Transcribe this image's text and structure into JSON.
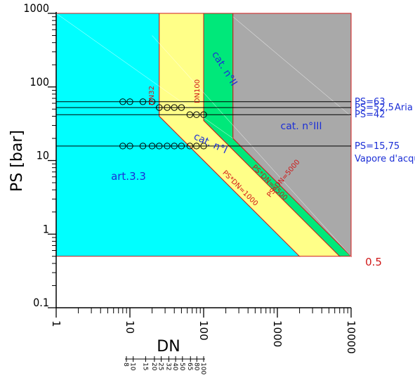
{
  "chart_data": {
    "type": "diagram",
    "xlabel": "DN",
    "ylabel": "PS [bar]",
    "x_scale": "log",
    "y_scale": "log",
    "xlim": [
      1,
      10000
    ],
    "ylim": [
      0.1,
      1000
    ],
    "x_tick_labels": [
      "1",
      "10",
      "100",
      "1000",
      "10000"
    ],
    "y_tick_labels": [
      "0.1",
      "1",
      "10",
      "100",
      "1000"
    ],
    "region_labels": {
      "art33": "art.3.3",
      "cat1": "cat. n°I",
      "cat2": "cat. n°II",
      "cat3": "cat. n°III"
    },
    "boundary_labels": {
      "ps_dn_1000": "PS*DN=1000",
      "ps_dn_3500": "PS*DN=3500",
      "ps_dn_5000": "PS*DN=5000",
      "dn32": "DN32",
      "dn100": "DN100",
      "ps_min": "0.5"
    },
    "pressure_lines": [
      {
        "ps": 63,
        "label": "PS=63"
      },
      {
        "ps": 52.5,
        "label": "PS=52,5"
      },
      {
        "ps": 42,
        "label": "PS=42"
      },
      {
        "ps": 15.75,
        "label": "PS=15,75"
      }
    ],
    "fluid_labels": {
      "air": "Aria",
      "steam": "Vapore d'acqua"
    },
    "circle_points": [
      {
        "dn": 8,
        "ps": 63
      },
      {
        "dn": 10,
        "ps": 63
      },
      {
        "dn": 15,
        "ps": 63
      },
      {
        "dn": 20,
        "ps": 63
      },
      {
        "dn": 25,
        "ps": 52.5
      },
      {
        "dn": 32,
        "ps": 52.5
      },
      {
        "dn": 40,
        "ps": 52.5
      },
      {
        "dn": 50,
        "ps": 52.5
      },
      {
        "dn": 65,
        "ps": 42
      },
      {
        "dn": 80,
        "ps": 42
      },
      {
        "dn": 100,
        "ps": 42
      },
      {
        "dn": 8,
        "ps": 15.75
      },
      {
        "dn": 10,
        "ps": 15.75
      },
      {
        "dn": 15,
        "ps": 15.75
      },
      {
        "dn": 20,
        "ps": 15.75
      },
      {
        "dn": 25,
        "ps": 15.75
      },
      {
        "dn": 32,
        "ps": 15.75
      },
      {
        "dn": 40,
        "ps": 15.75
      },
      {
        "dn": 50,
        "ps": 15.75
      },
      {
        "dn": 65,
        "ps": 15.75
      },
      {
        "dn": 80,
        "ps": 15.75
      },
      {
        "dn": 100,
        "ps": 15.75
      }
    ],
    "dn_legend": [
      "8",
      "10",
      "15",
      "20",
      "25",
      "32",
      "40",
      "50",
      "65",
      "80",
      "100"
    ],
    "colors": {
      "art33": "#00ffff",
      "cat1": "#ffff88",
      "cat2": "#00e87a",
      "cat3": "#a9a9a9",
      "blue": "#1c2fd6",
      "red": "#d01818"
    }
  }
}
